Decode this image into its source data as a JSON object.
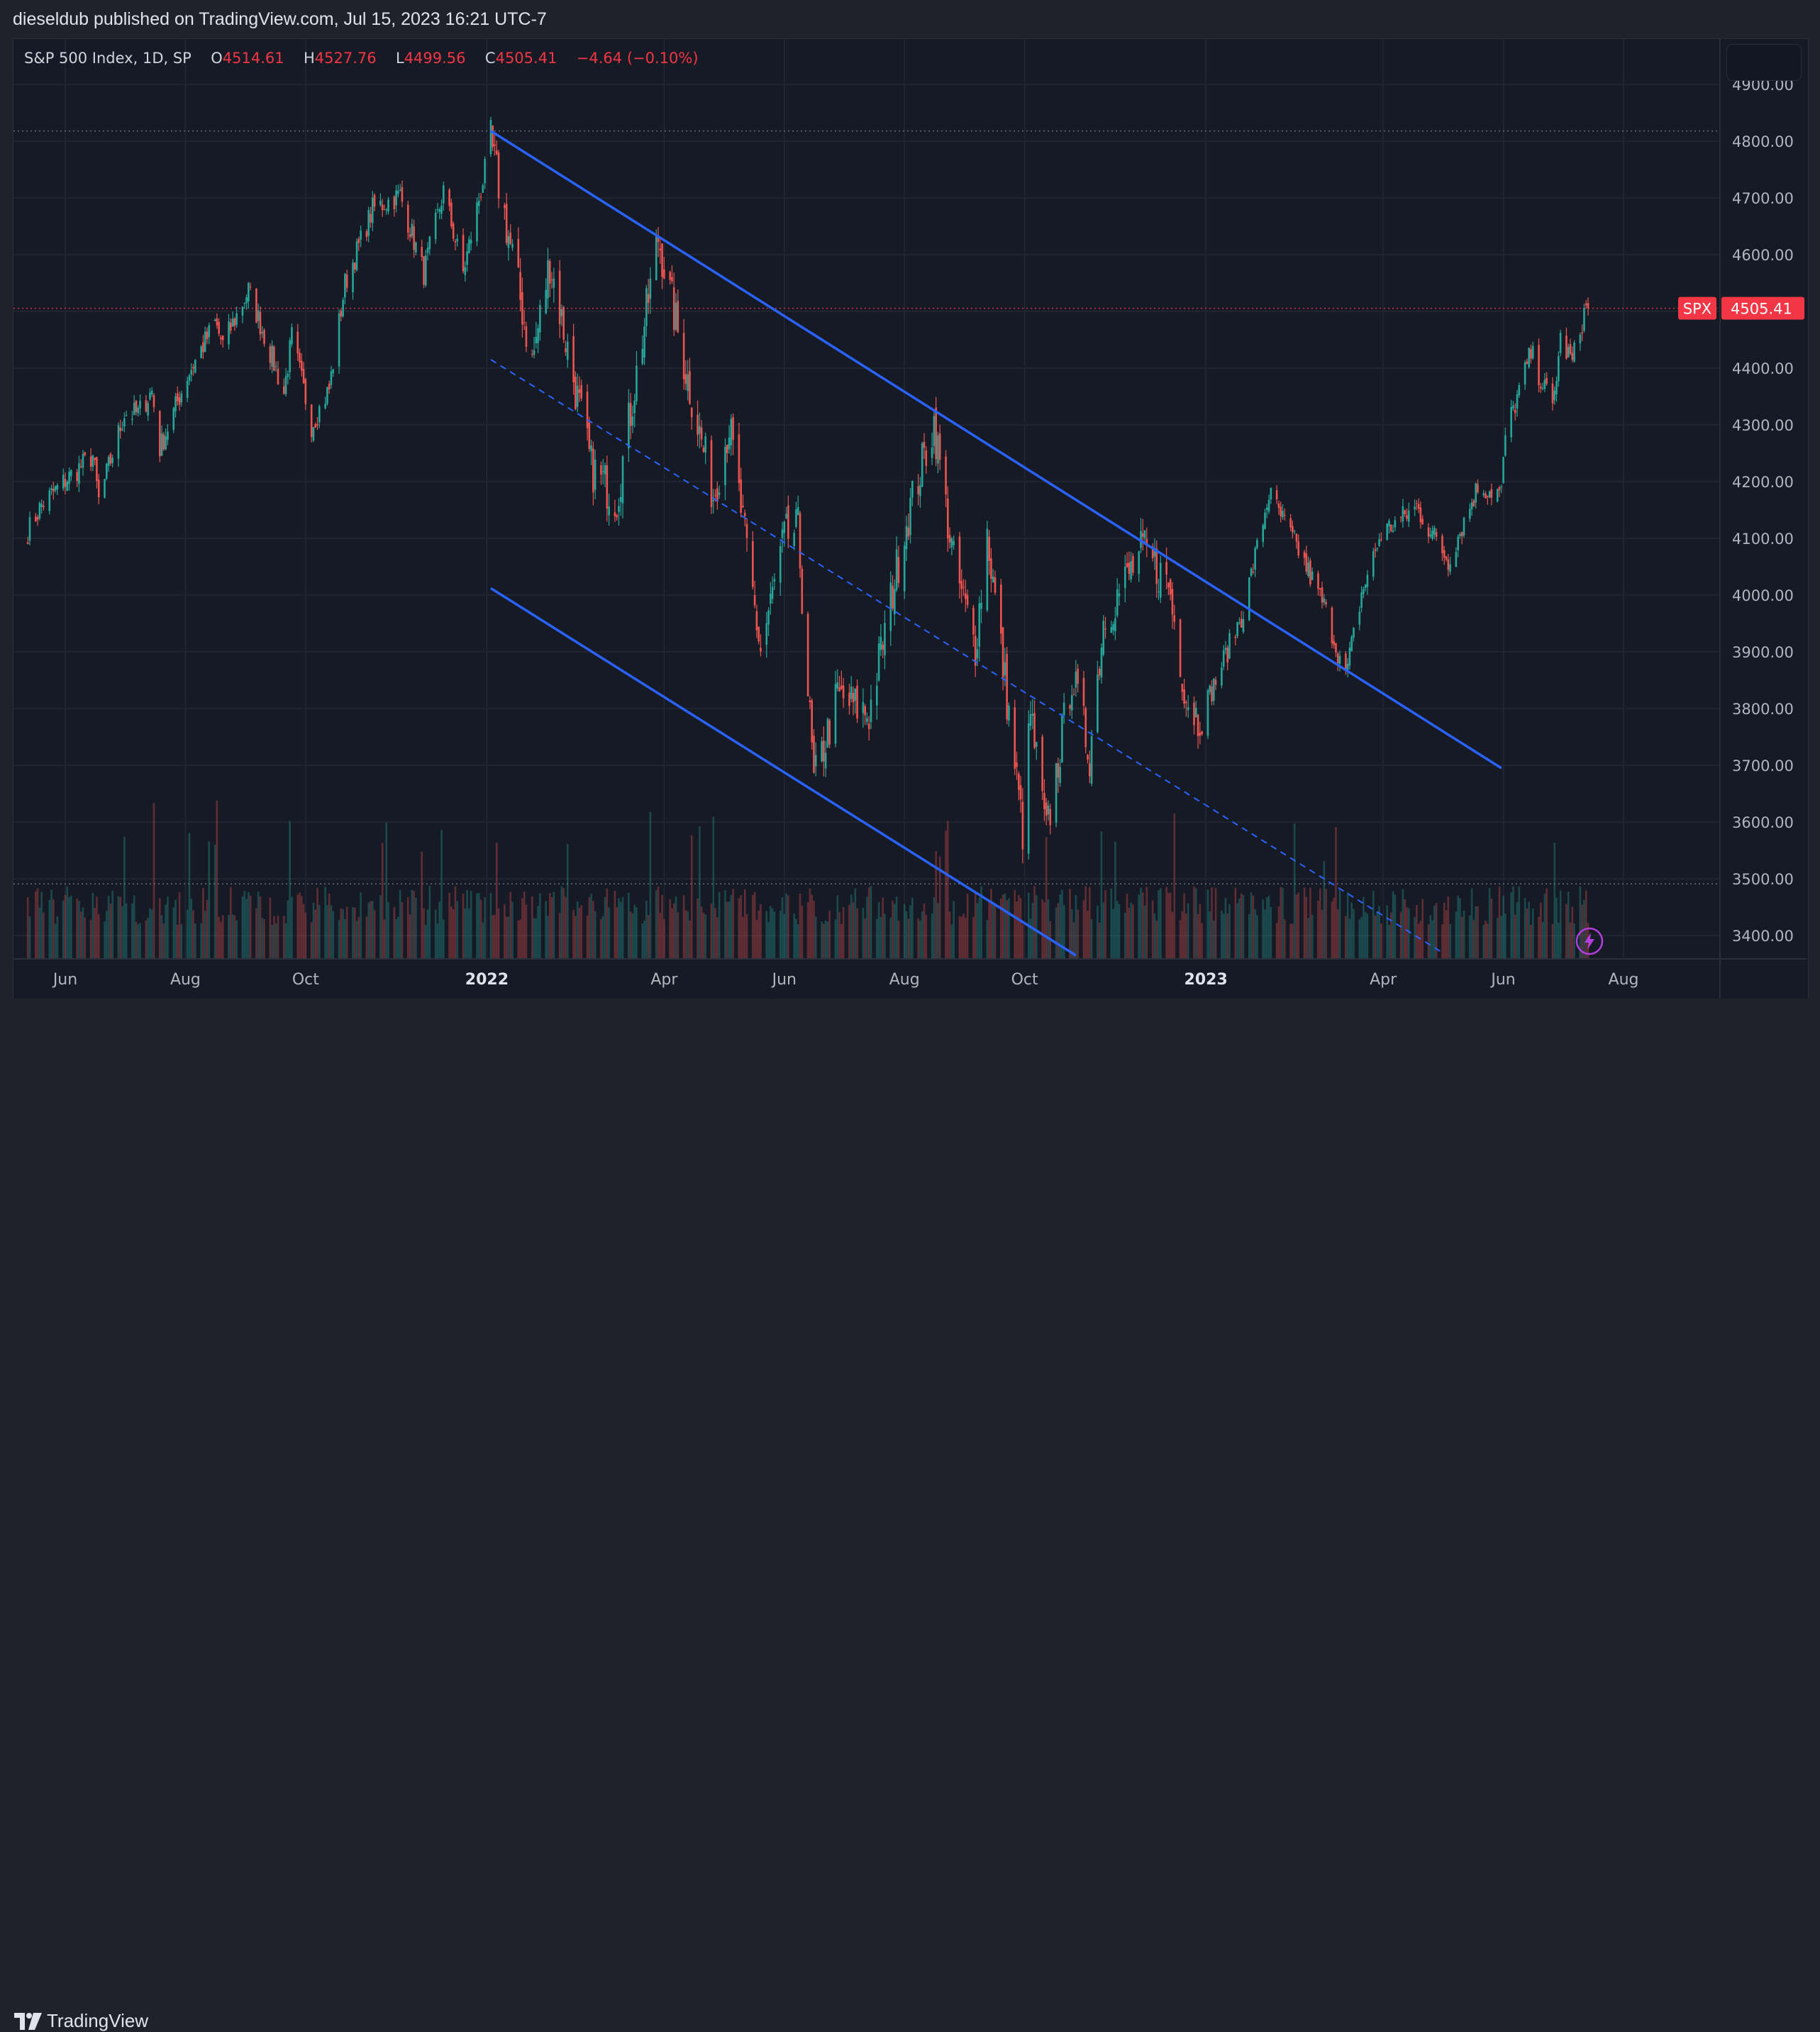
{
  "header": {
    "publisher": "dieseldub published on TradingView.com, Jul 15, 2023 16:21 UTC-7"
  },
  "legend": {
    "symbol": "S&P 500 Index, 1D, SP",
    "open_label": "O",
    "open": "4514.61",
    "high_label": "H",
    "high": "4527.76",
    "low_label": "L",
    "low": "4499.56",
    "close_label": "C",
    "close": "4505.41",
    "change": "−4.64 (−0.10%)"
  },
  "footer": {
    "brand": "TradingView"
  },
  "colors": {
    "up": "#26a69a",
    "down": "#ef5350",
    "channel": "#2962ff",
    "price_tag": "#f23645"
  },
  "icons": [
    "tradingview-logo-icon",
    "lightning-icon"
  ],
  "chart_data": {
    "type": "candlestick",
    "symbol": "SPX",
    "timeframe": "1D",
    "ylim": [
      3350,
      4950
    ],
    "y_ticks": [
      "4900.00",
      "4800.00",
      "4700.00",
      "4600.00",
      "4500.00",
      "4400.00",
      "4300.00",
      "4200.00",
      "4100.00",
      "4000.00",
      "3900.00",
      "3800.00",
      "3700.00",
      "3600.00",
      "3500.00",
      "3400.00"
    ],
    "x_ticks": [
      {
        "label": "Jun",
        "date": "2021-06-01",
        "bold": false
      },
      {
        "label": "Aug",
        "date": "2021-08-01",
        "bold": false
      },
      {
        "label": "Oct",
        "date": "2021-10-01",
        "bold": false
      },
      {
        "label": "2022",
        "date": "2022-01-01",
        "bold": true
      },
      {
        "label": "Apr",
        "date": "2022-04-01",
        "bold": false
      },
      {
        "label": "Jun",
        "date": "2022-06-01",
        "bold": false
      },
      {
        "label": "Aug",
        "date": "2022-08-01",
        "bold": false
      },
      {
        "label": "Oct",
        "date": "2022-10-01",
        "bold": false
      },
      {
        "label": "2023",
        "date": "2023-01-01",
        "bold": true
      },
      {
        "label": "Apr",
        "date": "2023-04-01",
        "bold": false
      },
      {
        "label": "Jun",
        "date": "2023-06-01",
        "bold": false
      },
      {
        "label": "Aug",
        "date": "2023-08-01",
        "bold": false
      }
    ],
    "last_price": {
      "label": "SPX",
      "value": "4505.41",
      "price": 4505.41
    },
    "reference_lines": [
      4818,
      4505.41,
      3491
    ],
    "trend_lines": [
      {
        "name": "channel-upper",
        "style": "solid",
        "points": [
          [
            "2022-01-03",
            4818
          ],
          [
            "2023-05-31",
            3695
          ]
        ]
      },
      {
        "name": "channel-middle",
        "style": "dashed",
        "points": [
          [
            "2022-01-03",
            4415
          ],
          [
            "2023-05-01",
            3370
          ]
        ]
      },
      {
        "name": "channel-lower",
        "style": "solid",
        "points": [
          [
            "2022-01-03",
            4012
          ],
          [
            "2022-10-27",
            3365
          ]
        ]
      }
    ],
    "price_path": [
      [
        "2021-05-13",
        4112
      ],
      [
        "2021-05-20",
        4159
      ],
      [
        "2021-06-01",
        4202
      ],
      [
        "2021-06-15",
        4246
      ],
      [
        "2021-06-18",
        4166
      ],
      [
        "2021-07-01",
        4320
      ],
      [
        "2021-07-08",
        4320
      ],
      [
        "2021-07-15",
        4360
      ],
      [
        "2021-07-19",
        4258
      ],
      [
        "2021-08-02",
        4387
      ],
      [
        "2021-08-16",
        4479
      ],
      [
        "2021-08-20",
        4441
      ],
      [
        "2021-09-02",
        4537
      ],
      [
        "2021-09-10",
        4458
      ],
      [
        "2021-09-20",
        4357
      ],
      [
        "2021-09-24",
        4455
      ],
      [
        "2021-10-04",
        4300
      ],
      [
        "2021-10-13",
        4363
      ],
      [
        "2021-10-21",
        4549
      ],
      [
        "2021-11-04",
        4680
      ],
      [
        "2021-11-18",
        4705
      ],
      [
        "2021-11-30",
        4567
      ],
      [
        "2021-12-10",
        4712
      ],
      [
        "2021-12-20",
        4568
      ],
      [
        "2022-01-03",
        4796
      ],
      [
        "2022-01-10",
        4670
      ],
      [
        "2022-01-24",
        4410
      ],
      [
        "2022-02-02",
        4589
      ],
      [
        "2022-02-23",
        4225
      ],
      [
        "2022-03-08",
        4170
      ],
      [
        "2022-03-29",
        4631
      ],
      [
        "2022-04-11",
        4412
      ],
      [
        "2022-04-26",
        4175
      ],
      [
        "2022-05-04",
        4300
      ],
      [
        "2022-05-20",
        3901
      ],
      [
        "2022-06-01",
        4100
      ],
      [
        "2022-06-08",
        4115
      ],
      [
        "2022-06-16",
        3667
      ],
      [
        "2022-06-28",
        3821
      ],
      [
        "2022-07-14",
        3790
      ],
      [
        "2022-08-01",
        4118
      ],
      [
        "2022-08-16",
        4305
      ],
      [
        "2022-08-26",
        4057
      ],
      [
        "2022-09-06",
        3909
      ],
      [
        "2022-09-12",
        4110
      ],
      [
        "2022-09-30",
        3585
      ],
      [
        "2022-10-04",
        3790
      ],
      [
        "2022-10-12",
        3577
      ],
      [
        "2022-10-25",
        3859
      ],
      [
        "2022-11-03",
        3720
      ],
      [
        "2022-11-10",
        3956
      ],
      [
        "2022-11-30",
        4080
      ],
      [
        "2022-12-13",
        4019
      ],
      [
        "2022-12-22",
        3822
      ],
      [
        "2022-12-28",
        3783
      ],
      [
        "2023-01-03",
        3824
      ],
      [
        "2023-01-20",
        3972
      ],
      [
        "2023-02-02",
        4179
      ],
      [
        "2023-02-17",
        4079
      ],
      [
        "2023-03-02",
        3981
      ],
      [
        "2023-03-13",
        3855
      ],
      [
        "2023-03-21",
        4002
      ],
      [
        "2023-03-31",
        4109
      ],
      [
        "2023-04-18",
        4155
      ],
      [
        "2023-05-04",
        4061
      ],
      [
        "2023-05-19",
        4191
      ],
      [
        "2023-05-31",
        4180
      ],
      [
        "2023-06-02",
        4282
      ],
      [
        "2023-06-15",
        4426
      ],
      [
        "2023-06-26",
        4328
      ],
      [
        "2023-06-30",
        4450
      ],
      [
        "2023-07-06",
        4411
      ],
      [
        "2023-07-13",
        4510
      ],
      [
        "2023-07-14",
        4505.41
      ]
    ]
  }
}
